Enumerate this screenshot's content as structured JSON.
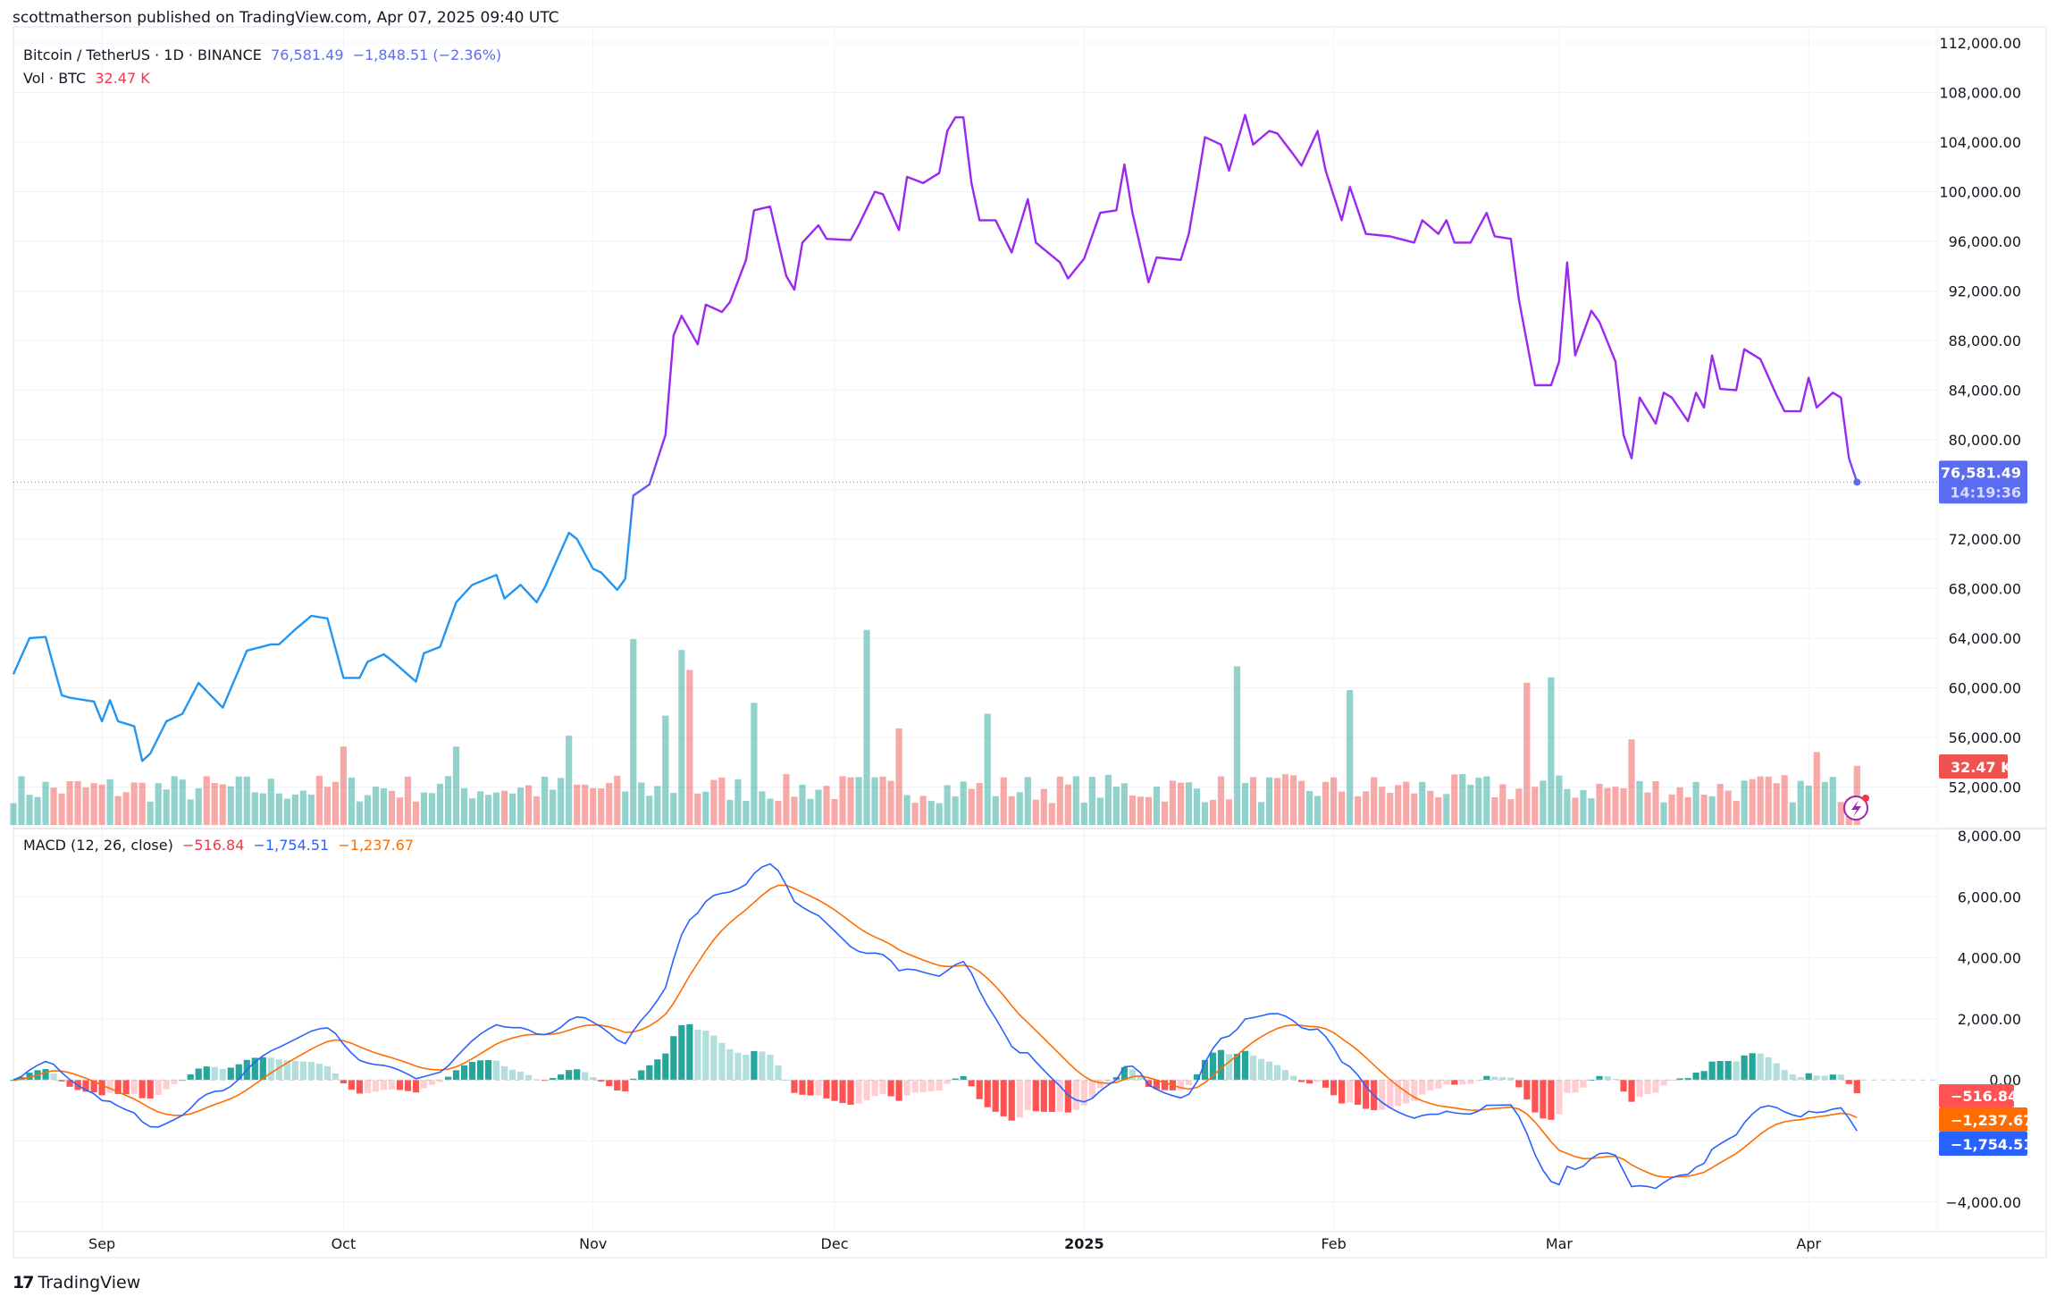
{
  "publisher": "scottmatherson published on TradingView.com, Apr 07, 2025 09:40 UTC",
  "legend": {
    "symbol": "Bitcoin / TetherUS · 1D · BINANCE",
    "last": "76,581.49",
    "change": "−1,848.51 (−2.36%)",
    "vol_label": "Vol · BTC",
    "vol_value": "32.47 K",
    "macd_label": "MACD (12, 26, close)",
    "macd_hist": "−516.84",
    "macd_line": "−1,754.51",
    "macd_signal": "−1,237.67"
  },
  "price_badge": {
    "price": "76,581.49",
    "countdown": "14:19:36"
  },
  "vol_badge": "32.47 K",
  "macd_badges": {
    "hist": "−516.84",
    "signal": "−1,237.67",
    "macd": "−1,754.51"
  },
  "logo_text": "TradingView",
  "colors": {
    "line_low": "#2196f3",
    "line_high": "#9c27f0",
    "up": "#26a69a",
    "down": "#ef5350",
    "macd": "#2962ff",
    "signal": "#ff6d00"
  },
  "chart_data": {
    "type": "line",
    "title": "Bitcoin / TetherUS · 1D · BINANCE",
    "bars": 230,
    "price_ticks": [
      "112,000.00",
      "108,000.00",
      "104,000.00",
      "100,000.00",
      "96,000.00",
      "92,000.00",
      "88,000.00",
      "84,000.00",
      "80,000.00",
      "76,000.00",
      "72,000.00",
      "68,000.00",
      "64,000.00",
      "60,000.00",
      "56,000.00",
      "52,000.00"
    ],
    "price_range": [
      48000,
      112000
    ],
    "macd_ticks": [
      "8,000.00",
      "6,000.00",
      "4,000.00",
      "2,000.00",
      "0.00",
      "−4,000.00"
    ],
    "macd_range": [
      -4000,
      8000
    ],
    "time_labels": [
      {
        "label": "Sep",
        "bar": 11
      },
      {
        "label": "Oct",
        "bar": 41
      },
      {
        "label": "Nov",
        "bar": 72
      },
      {
        "label": "Dec",
        "bar": 102
      },
      {
        "label": "2025",
        "bar": 133,
        "bold": true
      },
      {
        "label": "Feb",
        "bar": 164
      },
      {
        "label": "Mar",
        "bar": 192
      },
      {
        "label": "Apr",
        "bar": 223
      }
    ],
    "close_anchors": [
      [
        0,
        61100
      ],
      [
        2,
        64000
      ],
      [
        4,
        64100
      ],
      [
        6,
        59400
      ],
      [
        7,
        59200
      ],
      [
        10,
        58900
      ],
      [
        11,
        57300
      ],
      [
        12,
        59000
      ],
      [
        13,
        57300
      ],
      [
        15,
        56900
      ],
      [
        16,
        54100
      ],
      [
        17,
        54700
      ],
      [
        19,
        57300
      ],
      [
        21,
        57900
      ],
      [
        23,
        60400
      ],
      [
        26,
        58400
      ],
      [
        29,
        63000
      ],
      [
        32,
        63500
      ],
      [
        33,
        63500
      ],
      [
        35,
        64700
      ],
      [
        37,
        65800
      ],
      [
        39,
        65600
      ],
      [
        41,
        60800
      ],
      [
        43,
        60800
      ],
      [
        44,
        62100
      ],
      [
        46,
        62700
      ],
      [
        47,
        62200
      ],
      [
        50,
        60500
      ],
      [
        51,
        62800
      ],
      [
        53,
        63300
      ],
      [
        55,
        66900
      ],
      [
        57,
        68300
      ],
      [
        60,
        69100
      ],
      [
        61,
        67200
      ],
      [
        63,
        68300
      ],
      [
        65,
        66900
      ],
      [
        66,
        68100
      ],
      [
        69,
        72500
      ],
      [
        70,
        72000
      ],
      [
        72,
        69600
      ],
      [
        73,
        69300
      ],
      [
        75,
        67900
      ],
      [
        76,
        68800
      ],
      [
        77,
        75500
      ],
      [
        79,
        76400
      ],
      [
        81,
        80400
      ],
      [
        82,
        88400
      ],
      [
        83,
        90000
      ],
      [
        85,
        87700
      ],
      [
        86,
        90900
      ],
      [
        88,
        90300
      ],
      [
        89,
        91100
      ],
      [
        91,
        94500
      ],
      [
        92,
        98500
      ],
      [
        94,
        98800
      ],
      [
        96,
        93200
      ],
      [
        97,
        92100
      ],
      [
        98,
        95900
      ],
      [
        100,
        97300
      ],
      [
        101,
        96200
      ],
      [
        104,
        96100
      ],
      [
        105,
        97300
      ],
      [
        107,
        100000
      ],
      [
        108,
        99800
      ],
      [
        110,
        96900
      ],
      [
        111,
        101200
      ],
      [
        113,
        100700
      ],
      [
        115,
        101500
      ],
      [
        116,
        104900
      ],
      [
        117,
        106000
      ],
      [
        118,
        106000
      ],
      [
        119,
        100700
      ],
      [
        120,
        97700
      ],
      [
        122,
        97700
      ],
      [
        124,
        95100
      ],
      [
        126,
        99400
      ],
      [
        127,
        95900
      ],
      [
        130,
        94300
      ],
      [
        131,
        93000
      ],
      [
        133,
        94600
      ],
      [
        135,
        98300
      ],
      [
        137,
        98500
      ],
      [
        138,
        102200
      ],
      [
        139,
        98300
      ],
      [
        141,
        92700
      ],
      [
        142,
        94700
      ],
      [
        145,
        94500
      ],
      [
        146,
        96600
      ],
      [
        147,
        100400
      ],
      [
        148,
        104400
      ],
      [
        150,
        103800
      ],
      [
        151,
        101700
      ],
      [
        153,
        106200
      ],
      [
        154,
        103800
      ],
      [
        156,
        104900
      ],
      [
        157,
        104700
      ],
      [
        159,
        103000
      ],
      [
        160,
        102100
      ],
      [
        162,
        104900
      ],
      [
        163,
        101700
      ],
      [
        165,
        97700
      ],
      [
        166,
        100400
      ],
      [
        168,
        96600
      ],
      [
        171,
        96400
      ],
      [
        174,
        95900
      ],
      [
        175,
        97700
      ],
      [
        177,
        96600
      ],
      [
        178,
        97700
      ],
      [
        179,
        95900
      ],
      [
        181,
        95900
      ],
      [
        183,
        98300
      ],
      [
        184,
        96400
      ],
      [
        186,
        96200
      ],
      [
        187,
        91300
      ],
      [
        189,
        84400
      ],
      [
        191,
        84400
      ],
      [
        192,
        86300
      ],
      [
        193,
        94300
      ],
      [
        194,
        86800
      ],
      [
        196,
        90400
      ],
      [
        197,
        89500
      ],
      [
        199,
        86300
      ],
      [
        200,
        80400
      ],
      [
        201,
        78500
      ],
      [
        202,
        83400
      ],
      [
        204,
        81300
      ],
      [
        205,
        83800
      ],
      [
        206,
        83400
      ],
      [
        208,
        81500
      ],
      [
        209,
        83800
      ],
      [
        210,
        82600
      ],
      [
        211,
        86800
      ],
      [
        212,
        84100
      ],
      [
        214,
        84000
      ],
      [
        215,
        87300
      ],
      [
        217,
        86500
      ],
      [
        219,
        83600
      ],
      [
        220,
        82300
      ],
      [
        222,
        82300
      ],
      [
        223,
        85000
      ],
      [
        224,
        82600
      ],
      [
        226,
        83800
      ],
      [
        227,
        83400
      ],
      [
        228,
        78500
      ],
      [
        229,
        76581.49
      ]
    ],
    "last_price": 76581.49,
    "volume_unit": "K BTC",
    "volume_base": [
      12,
      28
    ],
    "volume_spikes": [
      [
        41,
        43
      ],
      [
        55,
        43
      ],
      [
        69,
        49
      ],
      [
        77,
        102
      ],
      [
        81,
        60
      ],
      [
        83,
        96
      ],
      [
        84,
        85
      ],
      [
        92,
        67
      ],
      [
        106,
        107
      ],
      [
        110,
        53
      ],
      [
        121,
        61
      ],
      [
        152,
        87
      ],
      [
        166,
        74
      ],
      [
        188,
        78
      ],
      [
        191,
        81
      ],
      [
        201,
        47
      ],
      [
        224,
        40
      ],
      [
        229,
        32.47
      ]
    ],
    "macd_params": [
      12,
      26,
      9
    ]
  }
}
